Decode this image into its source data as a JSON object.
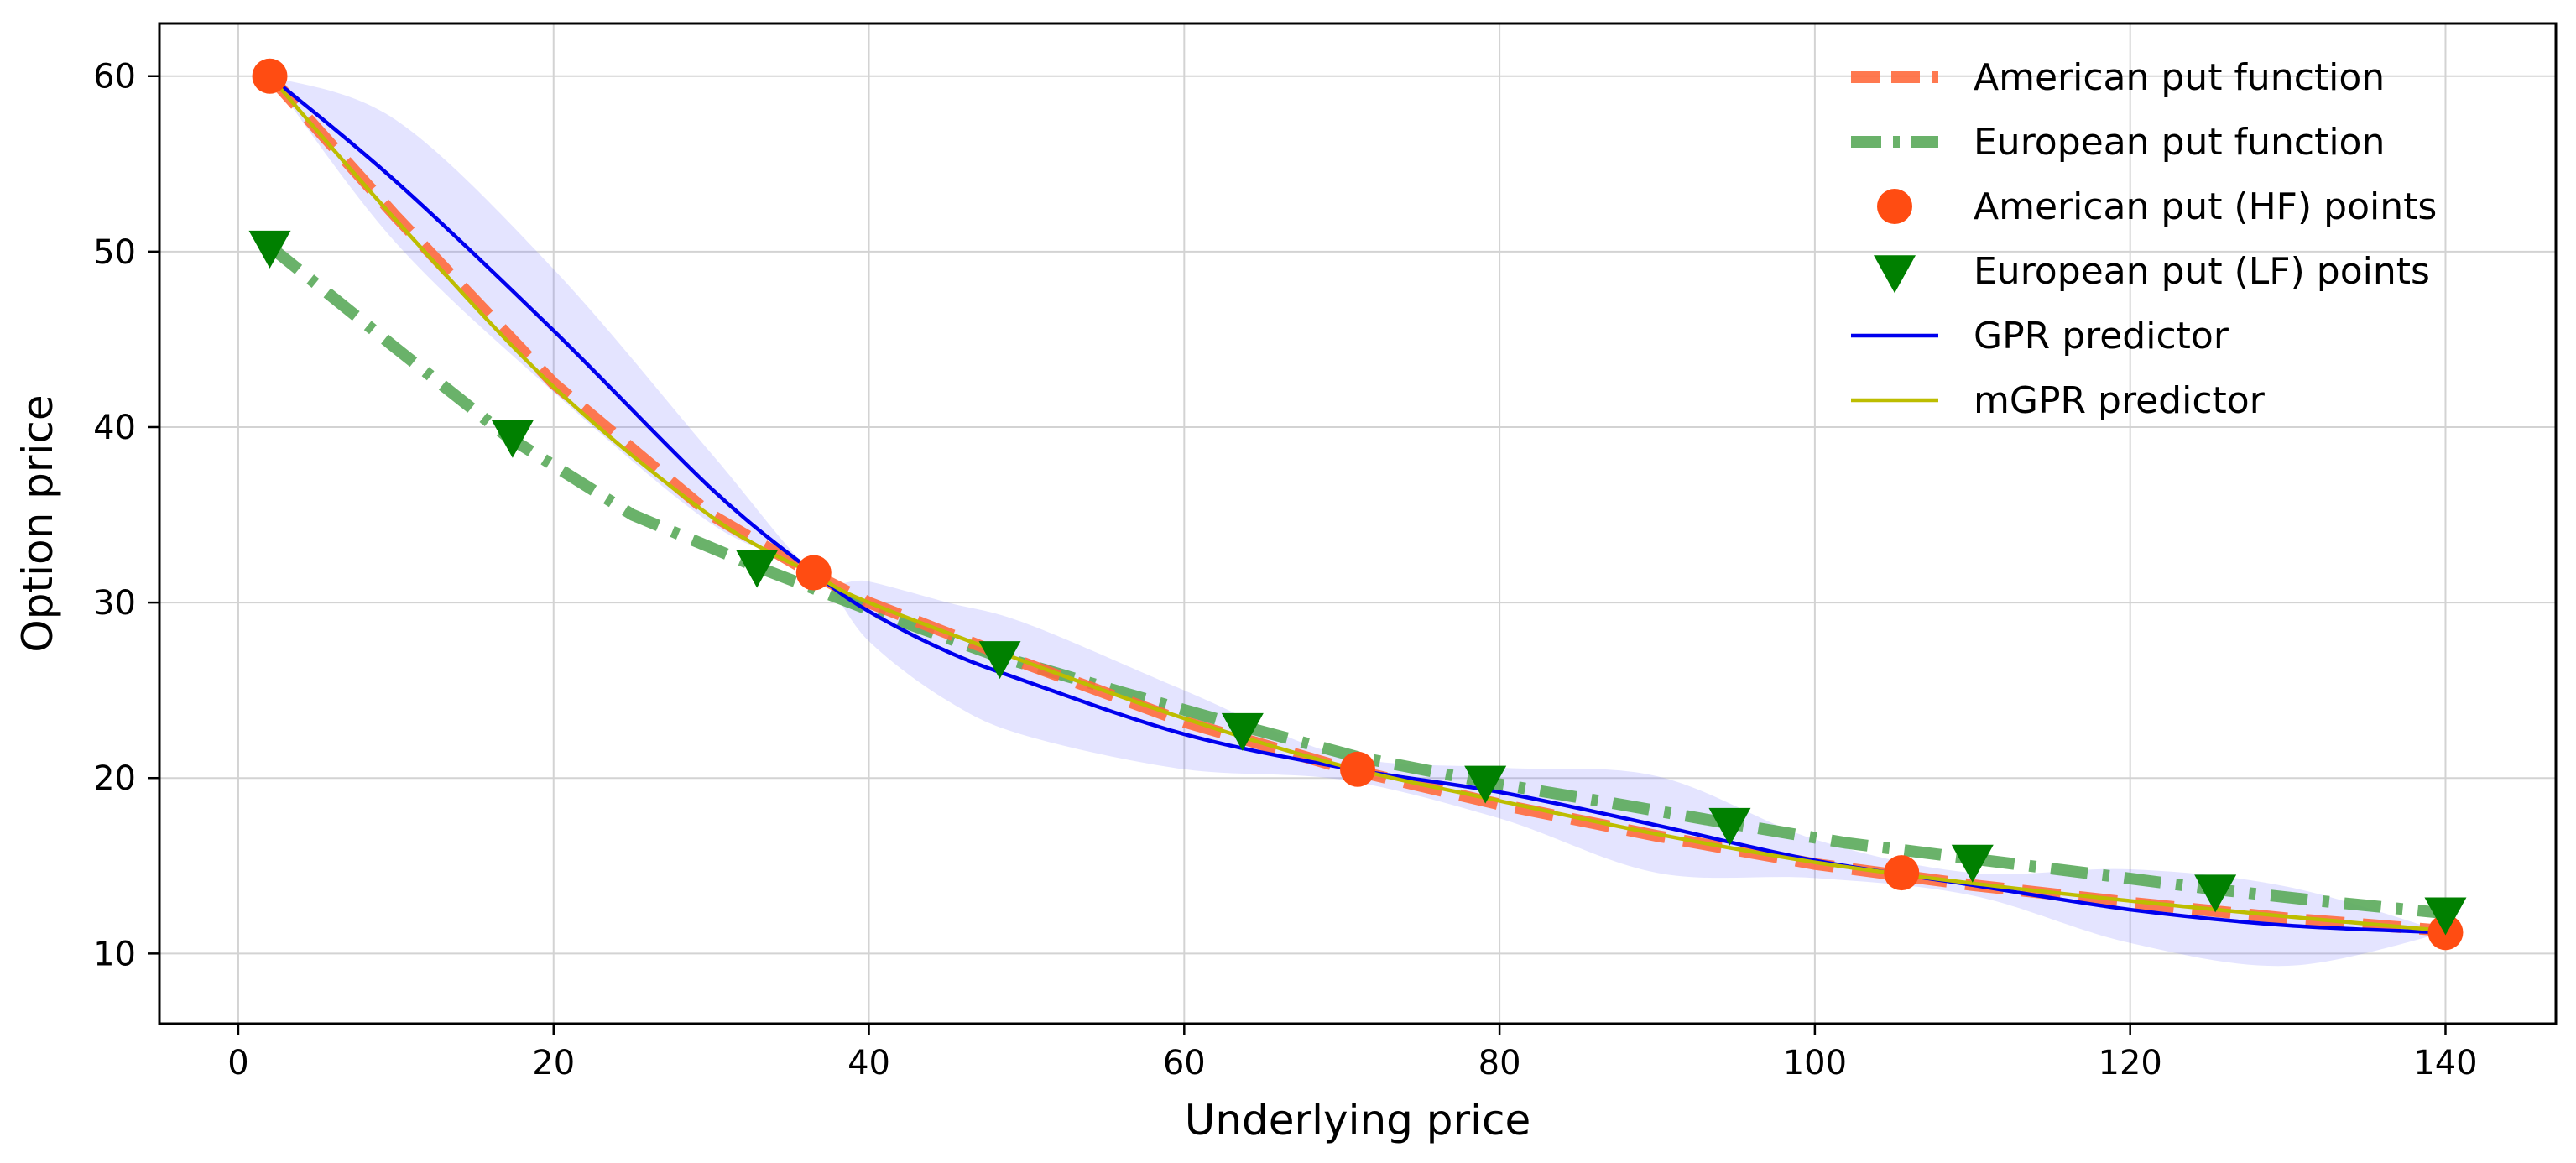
{
  "chart_data": {
    "type": "line",
    "title": "",
    "xlabel": "Underlying price",
    "ylabel": "Option price",
    "xlim": [
      -5,
      147
    ],
    "ylim": [
      6,
      63
    ],
    "xticks": [
      0,
      20,
      40,
      60,
      80,
      100,
      120,
      140
    ],
    "yticks": [
      10,
      20,
      30,
      40,
      50,
      60
    ],
    "grid": true,
    "legend_position": "top-right",
    "series": [
      {
        "key": "american_fn",
        "name": "American put function",
        "kind": "line",
        "style": "dashed",
        "color": "#ff6a3d",
        "x": [
          2,
          10,
          20,
          30,
          36.5,
          40,
          50,
          60,
          70,
          80,
          90,
          100,
          110,
          120,
          130,
          140
        ],
        "y": [
          60,
          52,
          42.5,
          35,
          31.6,
          30,
          26.5,
          23.2,
          20.6,
          18.5,
          16.7,
          15.1,
          13.9,
          12.9,
          12,
          11.3
        ]
      },
      {
        "key": "european_fn",
        "name": "European put function",
        "kind": "line",
        "style": "dashdot",
        "color": "#5aaa5a",
        "x": [
          2,
          10,
          17,
          25,
          33,
          40,
          48,
          56,
          63.5,
          71,
          79,
          87,
          94,
          102,
          110,
          118,
          125,
          132,
          140
        ],
        "y": [
          50.3,
          44.5,
          39.5,
          35,
          32,
          29.6,
          27,
          24.9,
          23,
          21.2,
          19.8,
          18.6,
          17.5,
          16.3,
          15.4,
          14.5,
          13.7,
          13,
          12.3
        ]
      },
      {
        "key": "american_pts",
        "name": "American put (HF) points",
        "kind": "scatter",
        "marker": "circle",
        "color": "#ff4c12",
        "x": [
          2,
          36.5,
          71,
          105.5,
          140
        ],
        "y": [
          60,
          31.7,
          20.5,
          14.6,
          11.2
        ]
      },
      {
        "key": "european_pts",
        "name": "European put (LF) points",
        "kind": "scatter",
        "marker": "triangle-down",
        "color": "#008000",
        "x": [
          2,
          17.4,
          32.9,
          48.3,
          63.7,
          79.1,
          94.6,
          110,
          125.4,
          140
        ],
        "y": [
          50.3,
          39.5,
          32.1,
          26.9,
          22.8,
          19.8,
          17.4,
          15.3,
          13.6,
          12.3
        ]
      },
      {
        "key": "gpr",
        "name": "GPR predictor",
        "kind": "line",
        "style": "solid",
        "color": "#0000ee",
        "x": [
          2,
          10,
          20,
          30,
          36.5,
          40,
          45,
          50,
          60,
          70,
          80,
          90,
          100,
          110,
          120,
          130,
          140
        ],
        "y": [
          60,
          54,
          45.5,
          36.5,
          31.7,
          29.5,
          27.2,
          25.5,
          22.5,
          20.6,
          19.2,
          17.3,
          15.3,
          13.9,
          12.5,
          11.6,
          11.2
        ],
        "band_upper": [
          60,
          57.5,
          49,
          38.5,
          31.7,
          31.2,
          30,
          28.8,
          25,
          21.3,
          20.6,
          20.1,
          16.5,
          14.6,
          14.8,
          13.8,
          11.2
        ],
        "band_lower": [
          60,
          50.5,
          42,
          34.5,
          31.7,
          27.8,
          24.4,
          22.4,
          20.5,
          19.9,
          17.7,
          14.6,
          14.3,
          13.3,
          10.6,
          9.3,
          11.2
        ]
      },
      {
        "key": "mgpr",
        "name": "mGPR predictor",
        "kind": "line",
        "style": "solid",
        "color": "#bdbd00",
        "x": [
          2,
          10,
          20,
          30,
          36.5,
          40,
          50,
          60,
          70,
          80,
          90,
          100,
          110,
          120,
          130,
          140
        ],
        "y": [
          60,
          51.8,
          42.3,
          34.9,
          31.6,
          30,
          26.6,
          23.4,
          20.7,
          18.7,
          16.8,
          15.2,
          14,
          13,
          12.1,
          11.3
        ]
      }
    ]
  }
}
